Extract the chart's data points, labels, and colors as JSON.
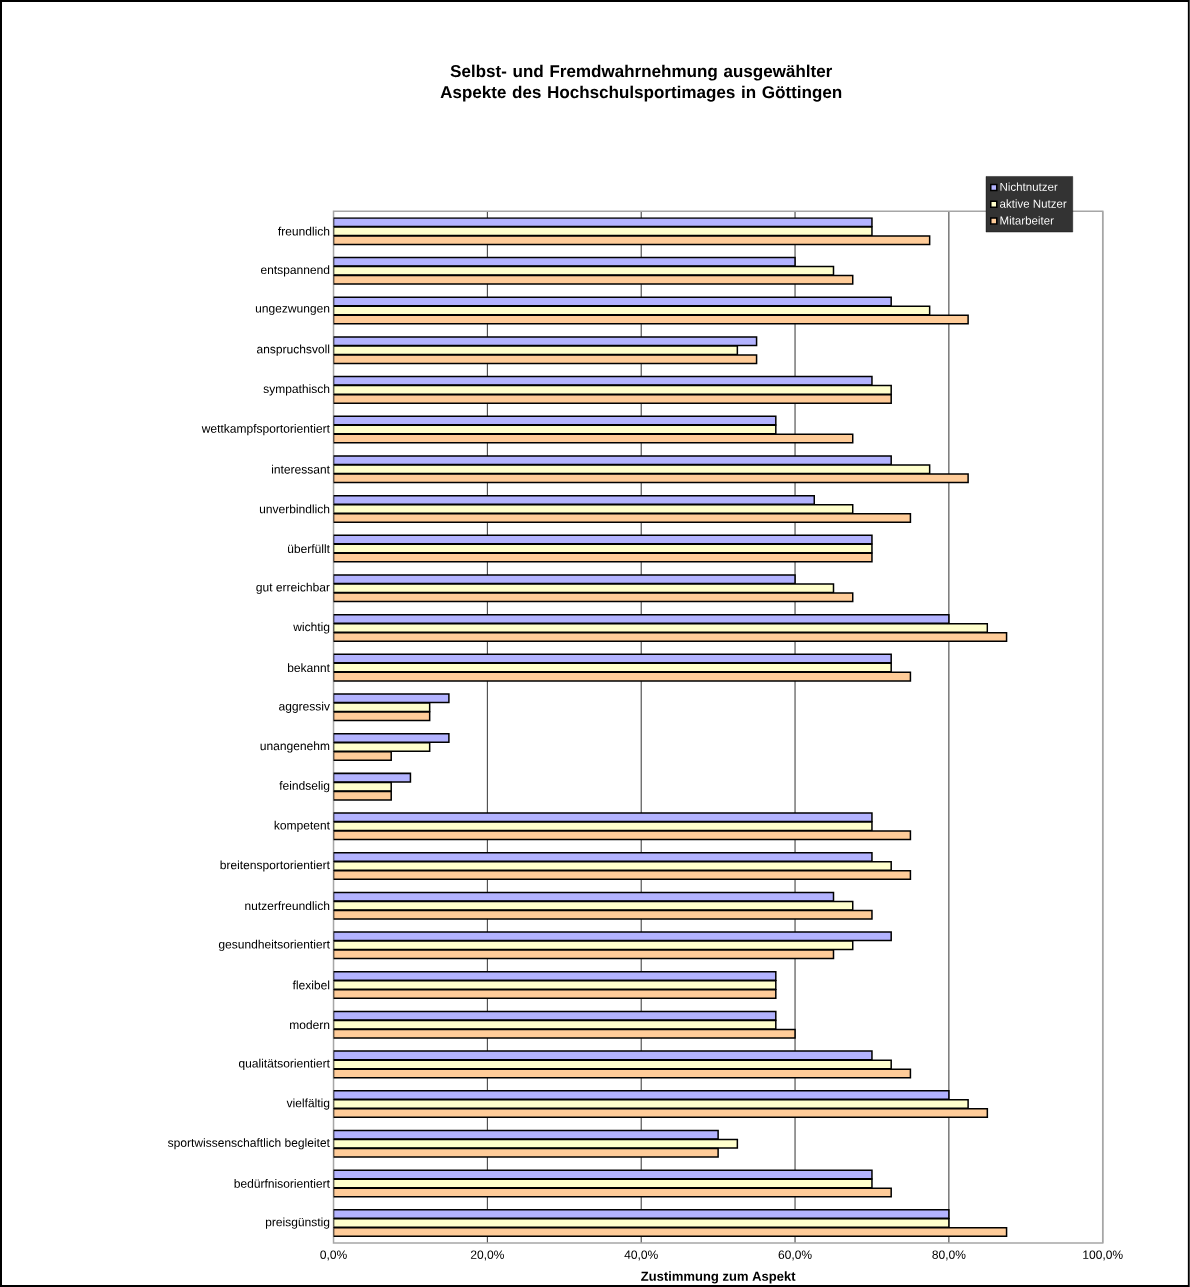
{
  "chart_data": {
    "type": "bar",
    "orientation": "horizontal",
    "title": "Selbst- und Fremdwahrnehmung ausgewählter Aspekte des Hochschulsportimages in Göttingen",
    "xlabel": "Zustimmung zum Aspekt",
    "categories": [
      "freundlich",
      "entspannend",
      "ungezwungen",
      "anspruchsvoll",
      "sympathisch",
      "wettkampfsportorientiert",
      "interessant",
      "unverbindlich",
      "überfüllt",
      "gut erreichbar",
      "wichtig",
      "bekannt",
      "aggressiv",
      "unangenehm",
      "feindselig",
      "kompetent",
      "breitensportorientiert",
      "nutzerfreundlich",
      "gesundheitsorientiert",
      "flexibel",
      "modern",
      "qualitätsorientiert",
      "vielfältig",
      "sportwissenschaftlich begleitet",
      "bedürfnisorientiert",
      "preisgünstig"
    ],
    "series": [
      {
        "name": "Nichtnutzer",
        "color": "#b3b3ff",
        "values": [
          70,
          60,
          72.5,
          55,
          70,
          57.5,
          72.5,
          62.5,
          70,
          60,
          80,
          72.5,
          15,
          15,
          10,
          70,
          70,
          65,
          72.5,
          57.5,
          57.5,
          70,
          80,
          50,
          70,
          80
        ]
      },
      {
        "name": "aktive Nutzer",
        "color": "#ffffcc",
        "values": [
          70,
          65,
          77.5,
          52.5,
          72.5,
          57.5,
          77.5,
          67.5,
          70,
          65,
          85,
          72.5,
          12.5,
          12.5,
          7.5,
          70,
          72.5,
          67.5,
          67.5,
          57.5,
          57.5,
          72.5,
          82.5,
          52.5,
          70,
          80
        ]
      },
      {
        "name": "Mitarbeiter",
        "color": "#ffcc99",
        "values": [
          77.5,
          67.5,
          82.5,
          55,
          72.5,
          67.5,
          82.5,
          75,
          70,
          67.5,
          87.5,
          75,
          12.5,
          7.5,
          7.5,
          75,
          75,
          70,
          65,
          57.5,
          60,
          75,
          85,
          50,
          72.5,
          87.5
        ]
      }
    ],
    "xlim": [
      0,
      100
    ],
    "xticks": [
      {
        "value": 0,
        "label": "0,0%"
      },
      {
        "value": 20,
        "label": "20,0%"
      },
      {
        "value": 40,
        "label": "40,0%"
      },
      {
        "value": 60,
        "label": "60,0%"
      },
      {
        "value": 80,
        "label": "80,0%"
      },
      {
        "value": 100,
        "label": "100,0%"
      }
    ],
    "grid": "x",
    "legend": "top right"
  }
}
